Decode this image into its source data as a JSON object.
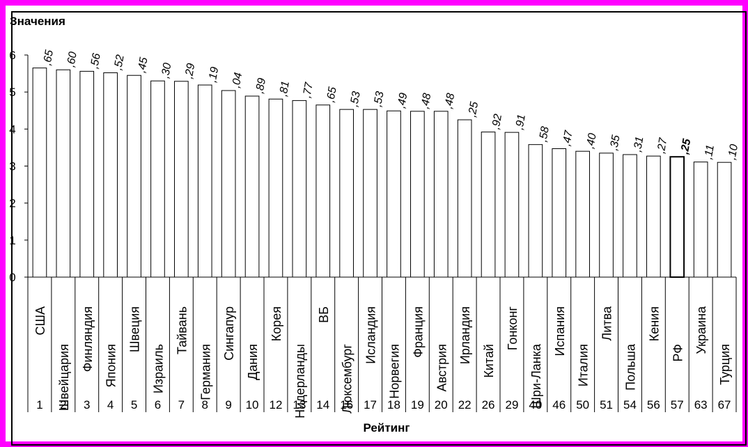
{
  "chart_data": {
    "type": "bar",
    "ylabel": "Значения",
    "xlabel": "Рейтинг",
    "ylim": [
      0,
      6
    ],
    "yticks": [
      0,
      1,
      2,
      3,
      4,
      5,
      6
    ],
    "grid": false,
    "bar_color": "#ffffff",
    "highlight_color": "#000000",
    "categories": [
      "США",
      "Швейцария",
      "Финляндия",
      "Япония",
      "Швеция",
      "Израиль",
      "Тайвань",
      "Германия",
      "Сингапур",
      "Дания",
      "Корея",
      "Нидерланды",
      "ВБ",
      "Люксембург",
      "Исландия",
      "Норвегия",
      "Франция",
      "Австрия",
      "Ирландия",
      "Китай",
      "Гонконг",
      "Шри-Ланка",
      "Испания",
      "Италия",
      "Литва",
      "Польша",
      "Кения",
      "РФ",
      "Украина",
      "Турция"
    ],
    "ranks": [
      "1",
      "2",
      "3",
      "4",
      "5",
      "6",
      "7",
      "8",
      "9",
      "10",
      "12",
      "13",
      "14",
      "16",
      "17",
      "18",
      "19",
      "20",
      "22",
      "26",
      "29",
      "40",
      "46",
      "50",
      "51",
      "54",
      "56",
      "57",
      "63",
      "67"
    ],
    "values": [
      5.65,
      5.6,
      5.56,
      5.52,
      5.45,
      5.3,
      5.29,
      5.19,
      5.04,
      4.89,
      4.81,
      4.77,
      4.65,
      4.53,
      4.53,
      4.49,
      4.48,
      4.48,
      4.25,
      3.92,
      3.91,
      3.58,
      3.47,
      3.4,
      3.35,
      3.31,
      3.27,
      3.25,
      3.11,
      3.1
    ],
    "data_labels": [
      ",65",
      ",60",
      ",56",
      ",52",
      ",45",
      ",30",
      ",29",
      ",19",
      ",04",
      ",89",
      ",81",
      ",77",
      ",65",
      ",53",
      ",53",
      ",49",
      ",48",
      ",48",
      ",25",
      ",92",
      ",91",
      ",58",
      ",47",
      ",40",
      ",35",
      ",31",
      ",27",
      ",25",
      ",11",
      ",10"
    ],
    "highlight_index": 27
  }
}
